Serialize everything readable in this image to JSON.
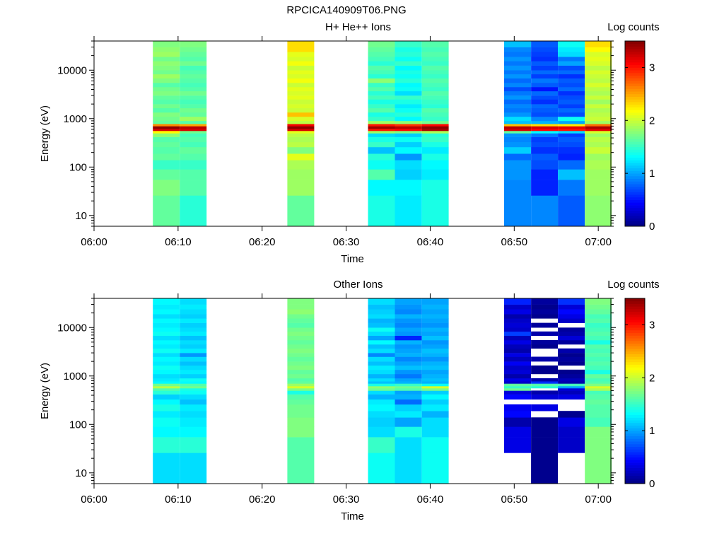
{
  "figure_title": "RPCICA140909T06.PNG",
  "chart_data": [
    {
      "type": "heatmap",
      "title": "H+ He++ Ions",
      "xlabel": "Time",
      "ylabel": "Energy (eV)",
      "colorbar_label": "Log counts",
      "colorbar_ticks": [
        "0",
        "1",
        "2",
        "3"
      ],
      "colorbar_range": [
        0,
        3.5
      ],
      "xlim_minutes": [
        0,
        61.5
      ],
      "x_ticks": [
        {
          "min": 0,
          "label": "06:00"
        },
        {
          "min": 10,
          "label": "06:10"
        },
        {
          "min": 20,
          "label": "06:20"
        },
        {
          "min": 30,
          "label": "06:30"
        },
        {
          "min": 40,
          "label": "06:40"
        },
        {
          "min": 50,
          "label": "06:50"
        },
        {
          "min": 60,
          "label": "07:00"
        }
      ],
      "ylim": [
        6,
        40000
      ],
      "y_ticks": [
        {
          "v": 10,
          "label": "10"
        },
        {
          "v": 100,
          "label": "100"
        },
        {
          "v": 1000,
          "label": "1000"
        },
        {
          "v": 10000,
          "label": "10000"
        }
      ],
      "energy_edges": [
        6,
        26,
        55,
        90,
        140,
        190,
        260,
        330,
        420,
        500,
        560,
        620,
        700,
        780,
        900,
        1100,
        1350,
        1650,
        2000,
        2500,
        3000,
        3700,
        4500,
        5500,
        6800,
        8300,
        10000,
        12500,
        15500,
        19000,
        24000,
        30000,
        40000
      ],
      "columns": [
        {
          "t0": 7.0,
          "t1": 10.2,
          "values": [
            1.65,
            1.75,
            1.65,
            1.5,
            1.65,
            1.6,
            1.65,
            1.6,
            1.8,
            2.2,
            3.2,
            3.45,
            2.6,
            1.65,
            1.7,
            1.75,
            1.6,
            1.7,
            1.6,
            1.65,
            1.75,
            1.7,
            1.6,
            1.75,
            1.85,
            1.7,
            1.75,
            1.8,
            1.7,
            1.85,
            1.8,
            1.75
          ]
        },
        {
          "t0": 10.2,
          "t1": 13.4,
          "values": [
            1.45,
            1.6,
            1.6,
            1.5,
            1.6,
            1.65,
            1.55,
            1.6,
            1.55,
            1.7,
            3.2,
            3.3,
            2.5,
            1.6,
            1.85,
            1.65,
            1.7,
            1.6,
            1.55,
            1.6,
            1.7,
            1.6,
            1.55,
            1.6,
            1.65,
            1.6,
            1.55,
            1.7,
            1.6,
            1.65,
            1.7,
            1.75
          ]
        },
        {
          "t0": 23.0,
          "t1": 26.2,
          "values": [
            1.65,
            1.85,
            1.85,
            1.9,
            2.1,
            1.75,
            1.95,
            1.9,
            1.95,
            2.1,
            3.2,
            3.45,
            3.1,
            1.95,
            2.05,
            2.4,
            2.0,
            2.05,
            2.0,
            2.1,
            2.05,
            2.1,
            2.0,
            2.15,
            2.05,
            2.1,
            2.0,
            2.15,
            2.05,
            2.1,
            2.3,
            2.3
          ]
        },
        {
          "t0": 32.6,
          "t1": 35.8,
          "values": [
            1.4,
            1.3,
            1.6,
            1.35,
            1.45,
            1.1,
            1.5,
            1.4,
            1.2,
            1.85,
            3.0,
            3.4,
            3.0,
            1.85,
            1.5,
            1.4,
            1.6,
            1.5,
            1.4,
            1.55,
            1.45,
            1.6,
            1.5,
            1.8,
            1.45,
            1.55,
            1.6,
            1.45,
            1.55,
            1.6,
            1.65,
            1.7
          ]
        },
        {
          "t0": 35.8,
          "t1": 39.0,
          "values": [
            1.25,
            1.3,
            1.15,
            1.2,
            0.95,
            1.3,
            1.15,
            1.35,
            1.15,
            1.75,
            3.05,
            3.3,
            2.9,
            1.8,
            1.3,
            1.45,
            1.35,
            1.25,
            1.4,
            1.5,
            1.2,
            1.35,
            1.3,
            1.45,
            1.35,
            1.4,
            1.3,
            1.5,
            1.35,
            1.45,
            1.4,
            1.5
          ]
        },
        {
          "t0": 39.0,
          "t1": 42.2,
          "values": [
            1.4,
            1.4,
            1.25,
            1.3,
            1.4,
            1.25,
            1.4,
            1.5,
            1.45,
            1.9,
            3.35,
            3.45,
            3.05,
            1.7,
            1.5,
            1.55,
            1.6,
            1.45,
            1.5,
            1.55,
            1.6,
            1.5,
            1.55,
            1.6,
            1.5,
            1.55,
            1.6,
            1.5,
            1.55,
            1.6,
            1.55,
            1.6
          ]
        },
        {
          "t0": 48.8,
          "t1": 52.0,
          "values": [
            0.9,
            0.9,
            0.95,
            0.95,
            0.8,
            1.15,
            0.95,
            0.9,
            0.95,
            1.65,
            3.2,
            3.3,
            2.4,
            1.1,
            1.2,
            0.95,
            0.85,
            0.9,
            0.8,
            0.95,
            0.85,
            0.7,
            0.9,
            0.8,
            0.95,
            0.85,
            0.95,
            0.85,
            0.95,
            0.85,
            0.9,
            1.1
          ]
        },
        {
          "t0": 52.0,
          "t1": 55.2,
          "values": [
            0.9,
            0.55,
            0.55,
            0.7,
            0.75,
            0.6,
            0.7,
            0.65,
            0.85,
            1.3,
            3.05,
            3.2,
            2.3,
            1.05,
            0.9,
            0.7,
            0.75,
            0.8,
            0.6,
            0.7,
            0.8,
            0.5,
            0.75,
            0.85,
            0.65,
            0.8,
            0.65,
            0.75,
            0.6,
            0.65,
            0.7,
            0.75
          ]
        },
        {
          "t0": 55.2,
          "t1": 58.4,
          "values": [
            0.75,
            0.85,
            1.1,
            0.8,
            0.55,
            0.6,
            0.7,
            0.75,
            0.65,
            1.2,
            3.0,
            3.15,
            2.25,
            1.0,
            1.35,
            0.7,
            0.8,
            0.65,
            0.75,
            0.7,
            0.6,
            0.8,
            0.7,
            0.75,
            0.6,
            0.8,
            0.7,
            1.0,
            0.85,
            1.2,
            1.25,
            1.35
          ]
        },
        {
          "t0": 58.4,
          "t1": 61.6,
          "values": [
            1.8,
            1.85,
            1.85,
            1.9,
            1.85,
            2.0,
            1.9,
            1.95,
            1.85,
            2.05,
            3.15,
            3.35,
            2.7,
            1.85,
            2.0,
            1.95,
            1.9,
            2.0,
            1.85,
            2.0,
            1.9,
            1.95,
            2.05,
            1.95,
            2.0,
            2.05,
            1.95,
            2.05,
            2.1,
            2.05,
            2.2,
            2.3
          ]
        }
      ]
    },
    {
      "type": "heatmap",
      "title": "Other Ions",
      "xlabel": "Time",
      "ylabel": "Energy (eV)",
      "colorbar_label": "Log counts",
      "colorbar_ticks": [
        "0",
        "1",
        "2",
        "3"
      ],
      "colorbar_range": [
        0,
        3.5
      ],
      "xlim_minutes": [
        0,
        61.5
      ],
      "x_ticks": [
        {
          "min": 0,
          "label": "06:00"
        },
        {
          "min": 10,
          "label": "06:10"
        },
        {
          "min": 20,
          "label": "06:20"
        },
        {
          "min": 30,
          "label": "06:30"
        },
        {
          "min": 40,
          "label": "06:40"
        },
        {
          "min": 50,
          "label": "06:50"
        },
        {
          "min": 60,
          "label": "07:00"
        }
      ],
      "ylim": [
        6,
        40000
      ],
      "y_ticks": [
        {
          "v": 10,
          "label": "10"
        },
        {
          "v": 100,
          "label": "100"
        },
        {
          "v": 1000,
          "label": "1000"
        },
        {
          "v": 10000,
          "label": "10000"
        }
      ],
      "energy_edges": [
        6,
        26,
        55,
        90,
        140,
        190,
        260,
        330,
        420,
        500,
        560,
        620,
        700,
        780,
        900,
        1100,
        1350,
        1650,
        2000,
        2500,
        3000,
        3700,
        4500,
        5500,
        6800,
        8300,
        10000,
        12500,
        15500,
        19000,
        24000,
        30000,
        40000
      ],
      "columns": [
        {
          "t0": 7.0,
          "t1": 10.2,
          "values": [
            1.2,
            1.45,
            1.3,
            1.35,
            1.25,
            1.4,
            1.3,
            1.15,
            1.45,
            1.6,
            1.95,
            1.7,
            1.3,
            1.25,
            1.2,
            1.3,
            1.35,
            1.25,
            1.3,
            1.2,
            1.35,
            1.25,
            1.3,
            1.2,
            1.35,
            1.3,
            1.25,
            1.3,
            1.2,
            1.3,
            1.25,
            1.3
          ]
        },
        {
          "t0": 10.2,
          "t1": 13.4,
          "values": [
            1.2,
            1.45,
            1.3,
            1.25,
            1.2,
            1.25,
            1.1,
            1.2,
            1.35,
            1.4,
            1.7,
            1.6,
            1.3,
            1.35,
            1.15,
            1.25,
            1.2,
            1.1,
            1.2,
            0.95,
            1.25,
            1.15,
            1.2,
            1.1,
            1.25,
            1.2,
            1.15,
            1.25,
            1.15,
            1.2,
            1.25,
            1.2
          ]
        },
        {
          "t0": 23.0,
          "t1": 26.2,
          "values": [
            1.6,
            1.6,
            1.75,
            1.75,
            1.7,
            1.7,
            1.65,
            1.6,
            1.4,
            1.75,
            2.05,
            1.85,
            1.65,
            1.6,
            1.7,
            1.65,
            1.75,
            1.7,
            1.65,
            1.7,
            1.75,
            1.7,
            1.65,
            1.7,
            1.75,
            1.7,
            1.6,
            1.65,
            1.7,
            1.8,
            1.75,
            1.75
          ]
        },
        {
          "t0": 32.6,
          "t1": 35.8,
          "values": [
            1.35,
            1.5,
            1.2,
            1.15,
            1.2,
            1.3,
            1.25,
            1.05,
            1.2,
            1.7,
            1.8,
            1.4,
            1.1,
            1.2,
            1.05,
            1.2,
            1.25,
            1.1,
            1.2,
            0.9,
            1.2,
            1.1,
            1.3,
            1.0,
            1.2,
            1.35,
            1.1,
            1.05,
            1.2,
            1.15,
            1.1,
            1.2
          ]
        },
        {
          "t0": 35.8,
          "t1": 39.0,
          "values": [
            1.2,
            1.2,
            1.4,
            1.0,
            1.25,
            1.15,
            0.8,
            1.05,
            1.0,
            1.6,
            1.7,
            1.5,
            1.05,
            1.0,
            0.85,
            0.95,
            1.1,
            1.0,
            0.9,
            1.05,
            1.0,
            0.95,
            1.05,
            0.55,
            0.95,
            1.0,
            0.9,
            0.95,
            1.05,
            0.9,
            0.95,
            1.0
          ]
        },
        {
          "t0": 39.0,
          "t1": 42.2,
          "values": [
            1.35,
            1.35,
            1.2,
            1.2,
            1.05,
            1.25,
            1.15,
            1.3,
            1.15,
            1.75,
            2.05,
            1.35,
            1.05,
            1.1,
            1.05,
            1.0,
            1.1,
            1.05,
            0.95,
            1.05,
            1.1,
            1.0,
            0.95,
            1.1,
            1.0,
            1.05,
            0.95,
            1.0,
            1.05,
            1.0,
            1.05,
            1.0
          ]
        },
        {
          "t0": 48.8,
          "t1": 52.0,
          "values": [
            null,
            0.35,
            0.35,
            0.15,
            0.45,
            0.4,
            null,
            0.45,
            0.3,
            1.7,
            1.5,
            1.65,
            0.25,
            0.35,
            0.15,
            0.3,
            0.25,
            0.4,
            0.2,
            0.35,
            0.15,
            0.2,
            0.35,
            0.2,
            0.65,
            0.25,
            0.3,
            0.25,
            0.15,
            0.35,
            0.25,
            0.55
          ]
        },
        {
          "t0": 52.0,
          "t1": 55.2,
          "values": [
            0.05,
            0.05,
            0.05,
            0.05,
            null,
            0.35,
            null,
            0.3,
            0.15,
            null,
            1.45,
            1.6,
            0.6,
            0.15,
            null,
            0.05,
            0.05,
            null,
            0.15,
            null,
            null,
            0.05,
            0.1,
            null,
            0.15,
            null,
            0.1,
            null,
            0.05,
            0.1,
            0.05,
            0.1
          ]
        },
        {
          "t0": 55.2,
          "t1": 58.4,
          "values": [
            null,
            0.25,
            0.25,
            0.35,
            0.05,
            null,
            null,
            0.35,
            0.2,
            0.3,
            1.0,
            1.55,
            0.15,
            0.2,
            0.1,
            0.05,
            null,
            0.05,
            0.1,
            0.05,
            0.15,
            null,
            0.1,
            0.3,
            0.15,
            0.1,
            null,
            0.25,
            0.35,
            0.45,
            0.3,
            0.6
          ]
        },
        {
          "t0": 58.4,
          "t1": 61.6,
          "values": [
            1.75,
            1.75,
            1.75,
            1.55,
            1.6,
            1.6,
            1.65,
            1.6,
            1.55,
            1.9,
            2.05,
            1.75,
            1.6,
            1.55,
            1.65,
            1.4,
            1.55,
            1.6,
            1.55,
            1.6,
            1.55,
            1.6,
            1.4,
            1.55,
            1.6,
            1.55,
            1.5,
            1.6,
            1.55,
            1.65,
            1.7,
            1.75
          ]
        }
      ]
    }
  ]
}
